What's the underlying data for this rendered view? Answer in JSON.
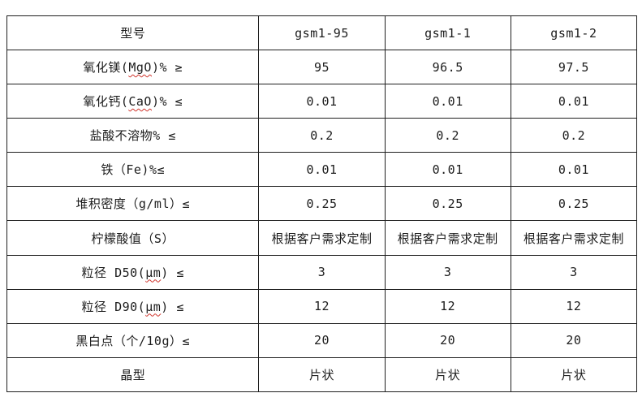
{
  "page": {
    "background": "#ffffff",
    "border_color": "#1f1f1f",
    "text_color": "#1c1c1c",
    "squiggle_color": "#d0342c"
  },
  "table": {
    "header": {
      "label": "型号",
      "values": [
        "gsm1-95",
        "gsm1-1",
        "gsm1-2"
      ]
    },
    "rows": [
      {
        "label": {
          "prefix": "氧化镁(",
          "squiggle": "MgO",
          "suffix": ")% ≥"
        },
        "values": [
          "95",
          "96.5",
          "97.5"
        ]
      },
      {
        "label": {
          "prefix": "氧化钙(",
          "squiggle": "CaO",
          "suffix": ")% ≤"
        },
        "values": [
          "0.01",
          "0.01",
          "0.01"
        ]
      },
      {
        "label": {
          "prefix": "盐酸不溶物% ≤",
          "squiggle": "",
          "suffix": ""
        },
        "values": [
          "0.2",
          "0.2",
          "0.2"
        ]
      },
      {
        "label": {
          "prefix": "铁（Fe)%≤",
          "squiggle": "",
          "suffix": ""
        },
        "values": [
          "0.01",
          "0.01",
          "0.01"
        ]
      },
      {
        "label": {
          "prefix": "堆积密度（g/ml）≤",
          "squiggle": "",
          "suffix": ""
        },
        "values": [
          "0.25",
          "0.25",
          "0.25"
        ]
      },
      {
        "label": {
          "prefix": "柠檬酸值（S）",
          "squiggle": "",
          "suffix": ""
        },
        "values": [
          "根据客户需求定制",
          "根据客户需求定制",
          "根据客户需求定制"
        ]
      },
      {
        "label": {
          "prefix": "粒径 D50(",
          "squiggle": "μm",
          "suffix": ") ≤"
        },
        "values": [
          "3",
          "3",
          "3"
        ]
      },
      {
        "label": {
          "prefix": "粒径 D90(",
          "squiggle": "μm",
          "suffix": ") ≤"
        },
        "values": [
          "12",
          "12",
          "12"
        ]
      },
      {
        "label": {
          "prefix": "黑白点（个/10g）≤",
          "squiggle": "",
          "suffix": ""
        },
        "values": [
          "20",
          "20",
          "20"
        ]
      },
      {
        "label": {
          "prefix": "晶型",
          "squiggle": "",
          "suffix": ""
        },
        "values": [
          "片状",
          "片状",
          "片状"
        ]
      }
    ]
  }
}
